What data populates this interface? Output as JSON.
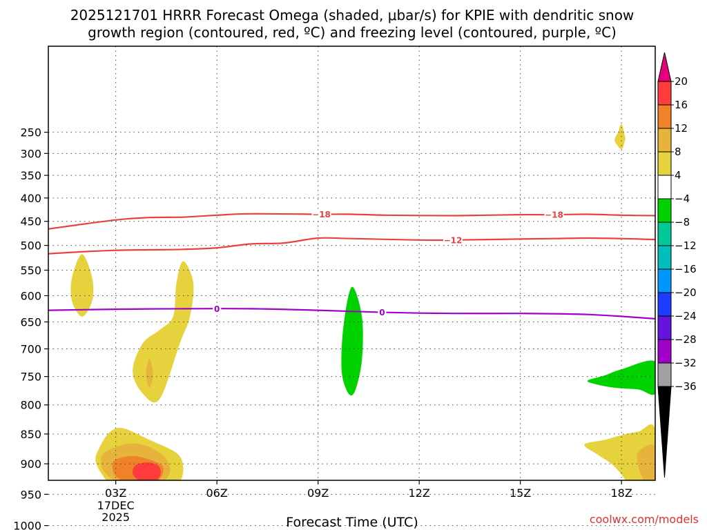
{
  "chart_data": {
    "type": "time-height contour",
    "title_line1": "2025121701 HRRR Forecast Omega (shaded, μbar/s) for KPIE with dendritic snow",
    "title_line2": "growth region (contoured, red, ºC) and freezing level (contoured, purple, ºC)",
    "xlabel": "Forecast Time (UTC)",
    "ylabel": "",
    "x_range_hours": [
      1,
      19
    ],
    "y_range_mb": [
      200,
      1050
    ],
    "x_ticks": [
      {
        "hour": 3,
        "label": "03Z",
        "sub1": "17DEC",
        "sub2": "2025"
      },
      {
        "hour": 6,
        "label": "06Z"
      },
      {
        "hour": 9,
        "label": "09Z"
      },
      {
        "hour": 12,
        "label": "12Z"
      },
      {
        "hour": 15,
        "label": "15Z"
      },
      {
        "hour": 18,
        "label": "18Z"
      }
    ],
    "y_ticks": [
      250,
      300,
      350,
      400,
      450,
      500,
      550,
      600,
      650,
      700,
      750,
      800,
      850,
      900,
      950,
      1000
    ],
    "colorbar": {
      "labels": [
        "20",
        "16",
        "12",
        "8",
        "4",
        "-4",
        "-8",
        "-12",
        "-16",
        "-20",
        "-24",
        "-28",
        "-32",
        "-36"
      ],
      "colors_top_to_bottom": [
        "#ff3c3c",
        "#f08228",
        "#e6b43c",
        "#e6d23c",
        "#ffffff",
        "#00d200",
        "#00c896",
        "#00bebe",
        "#0096ff",
        "#1e3cff",
        "#6414dc",
        "#a000c8",
        "#a0a0a0"
      ],
      "top_arrow_color": "#e6007a",
      "bottom_arrow_color": "#000000"
    },
    "contour_series": [
      {
        "name": "-18",
        "color": "#e84040",
        "points": [
          [
            1.0,
            466
          ],
          [
            3.0,
            447
          ],
          [
            4.0,
            442
          ],
          [
            5.0,
            441
          ],
          [
            6.0,
            437
          ],
          [
            7.0,
            434
          ],
          [
            9.0,
            435
          ],
          [
            10.0,
            435
          ],
          [
            11.0,
            437
          ],
          [
            13.0,
            438
          ],
          [
            14.0,
            437
          ],
          [
            15.0,
            436
          ],
          [
            16.0,
            436
          ],
          [
            17.0,
            435
          ],
          [
            18.0,
            437
          ],
          [
            19.0,
            438
          ]
        ],
        "labels_at_hours": [
          9.1,
          16.0
        ]
      },
      {
        "name": "-12",
        "color": "#e84040",
        "points": [
          [
            1.0,
            517
          ],
          [
            2.0,
            513
          ],
          [
            3.0,
            510
          ],
          [
            4.0,
            509
          ],
          [
            5.0,
            508
          ],
          [
            6.0,
            505
          ],
          [
            7.0,
            497
          ],
          [
            8.0,
            495
          ],
          [
            9.0,
            485
          ],
          [
            10.0,
            486
          ],
          [
            12.0,
            489
          ],
          [
            13.0,
            489
          ],
          [
            14.0,
            488
          ],
          [
            15.0,
            487
          ],
          [
            16.0,
            486
          ],
          [
            17.0,
            485
          ],
          [
            18.0,
            486
          ],
          [
            19.0,
            488
          ]
        ],
        "labels_at_hours": [
          13.0
        ]
      },
      {
        "name": "0",
        "color": "#a000c8",
        "points": [
          [
            1.0,
            628
          ],
          [
            3.0,
            626
          ],
          [
            5.0,
            625
          ],
          [
            7.0,
            625
          ],
          [
            9.0,
            628
          ],
          [
            11.0,
            632
          ],
          [
            13.0,
            634
          ],
          [
            15.0,
            634
          ],
          [
            17.0,
            636
          ],
          [
            19.0,
            644
          ]
        ],
        "labels_at_hours": [
          6.0,
          10.9
        ]
      }
    ],
    "omega_regions": [
      {
        "level": "4",
        "color": "#e6d23c",
        "points": [
          [
            2.0,
            518
          ],
          [
            2.3,
            565
          ],
          [
            2.3,
            610
          ],
          [
            2.0,
            640
          ],
          [
            1.7,
            610
          ],
          [
            1.7,
            565
          ]
        ]
      },
      {
        "level": "4",
        "color": "#e6d23c",
        "points": [
          [
            5.0,
            532
          ],
          [
            5.3,
            575
          ],
          [
            5.2,
            640
          ],
          [
            4.9,
            690
          ],
          [
            4.3,
            790
          ],
          [
            3.8,
            780
          ],
          [
            3.5,
            740
          ],
          [
            3.8,
            690
          ],
          [
            4.3,
            665
          ],
          [
            4.7,
            640
          ],
          [
            4.8,
            575
          ]
        ]
      },
      {
        "level": "8",
        "color": "#e6b43c",
        "points": [
          [
            4.0,
            718
          ],
          [
            4.1,
            745
          ],
          [
            4.0,
            770
          ],
          [
            3.9,
            745
          ]
        ]
      },
      {
        "level": "4",
        "color": "#e6d23c",
        "points": [
          [
            2.5,
            875
          ],
          [
            2.8,
            848
          ],
          [
            3.2,
            840
          ],
          [
            4.0,
            860
          ],
          [
            4.8,
            882
          ],
          [
            5.0,
            905
          ],
          [
            4.9,
            930
          ],
          [
            4.5,
            950
          ],
          [
            4.0,
            960
          ],
          [
            3.5,
            960
          ],
          [
            3.0,
            945
          ],
          [
            2.6,
            918
          ],
          [
            2.4,
            895
          ]
        ]
      },
      {
        "level": "8",
        "color": "#e6b43c",
        "points": [
          [
            2.6,
            885
          ],
          [
            3.0,
            872
          ],
          [
            3.5,
            866
          ],
          [
            4.0,
            872
          ],
          [
            4.5,
            892
          ],
          [
            4.6,
            915
          ],
          [
            4.3,
            935
          ],
          [
            3.8,
            945
          ],
          [
            3.3,
            938
          ],
          [
            2.9,
            925
          ],
          [
            2.6,
            908
          ]
        ]
      },
      {
        "level": "12",
        "color": "#f08228",
        "points": [
          [
            3.0,
            893
          ],
          [
            3.5,
            887
          ],
          [
            4.0,
            893
          ],
          [
            4.4,
            905
          ],
          [
            4.3,
            925
          ],
          [
            3.9,
            937
          ],
          [
            3.4,
            933
          ],
          [
            3.0,
            920
          ],
          [
            2.9,
            905
          ]
        ]
      },
      {
        "level": "16",
        "color": "#ff3c3c",
        "points": [
          [
            3.6,
            902
          ],
          [
            4.0,
            898
          ],
          [
            4.3,
            906
          ],
          [
            4.3,
            922
          ],
          [
            4.0,
            933
          ],
          [
            3.7,
            928
          ],
          [
            3.5,
            916
          ]
        ]
      },
      {
        "level": "-4",
        "color": "#00d200",
        "points": [
          [
            1.2,
            955
          ],
          [
            1.6,
            938
          ],
          [
            2.0,
            933
          ],
          [
            2.5,
            948
          ],
          [
            2.6,
            975
          ],
          [
            2.5,
            1003
          ],
          [
            2.0,
            1010
          ],
          [
            1.5,
            1005
          ],
          [
            1.3,
            990
          ],
          [
            1.2,
            970
          ]
        ]
      },
      {
        "level": "-8",
        "color": "#00c896",
        "points": [
          [
            1.6,
            958
          ],
          [
            2.0,
            948
          ],
          [
            2.3,
            962
          ],
          [
            2.3,
            985
          ],
          [
            2.0,
            1000
          ],
          [
            1.7,
            998
          ],
          [
            1.5,
            980
          ]
        ]
      },
      {
        "level": "-12",
        "color": "#00bebe",
        "points": [
          [
            1.8,
            968
          ],
          [
            2.1,
            962
          ],
          [
            2.2,
            982
          ],
          [
            2.0,
            995
          ],
          [
            1.8,
            990
          ]
        ]
      },
      {
        "level": "-4",
        "color": "#00d200",
        "points": [
          [
            10.0,
            583
          ],
          [
            10.3,
            640
          ],
          [
            10.3,
            720
          ],
          [
            10.1,
            775
          ],
          [
            9.9,
            780
          ],
          [
            9.7,
            740
          ],
          [
            9.75,
            660
          ]
        ]
      },
      {
        "level": "4",
        "color": "#e6d23c",
        "points": [
          [
            18.0,
            230
          ],
          [
            18.1,
            260
          ],
          [
            18.1,
            270
          ],
          [
            18.0,
            290
          ],
          [
            17.8,
            270
          ],
          [
            17.9,
            250
          ]
        ]
      },
      {
        "level": "-4",
        "color": "#00d200",
        "points": [
          [
            17.0,
            757
          ],
          [
            17.5,
            748
          ],
          [
            18.0,
            737
          ],
          [
            19.0,
            723
          ],
          [
            19.0,
            780
          ],
          [
            18.5,
            773
          ],
          [
            17.8,
            770
          ],
          [
            17.2,
            763
          ]
        ]
      },
      {
        "level": "4",
        "color": "#e6d23c",
        "points": [
          [
            16.9,
            868
          ],
          [
            17.5,
            860
          ],
          [
            18.0,
            852
          ],
          [
            18.5,
            846
          ],
          [
            19.0,
            843
          ],
          [
            19.0,
            975
          ],
          [
            18.8,
            975
          ],
          [
            18.3,
            940
          ],
          [
            17.8,
            905
          ],
          [
            17.3,
            885
          ]
        ]
      },
      {
        "level": "8",
        "color": "#e6b43c",
        "points": [
          [
            18.5,
            880
          ],
          [
            19.0,
            872
          ],
          [
            19.0,
            945
          ],
          [
            18.7,
            930
          ],
          [
            18.5,
            905
          ]
        ]
      }
    ],
    "ground": {
      "color": "#a0522d",
      "top_mb": 1015,
      "bottom_mb": 1050
    },
    "grid": true,
    "credit": "coolwx.com/models"
  }
}
